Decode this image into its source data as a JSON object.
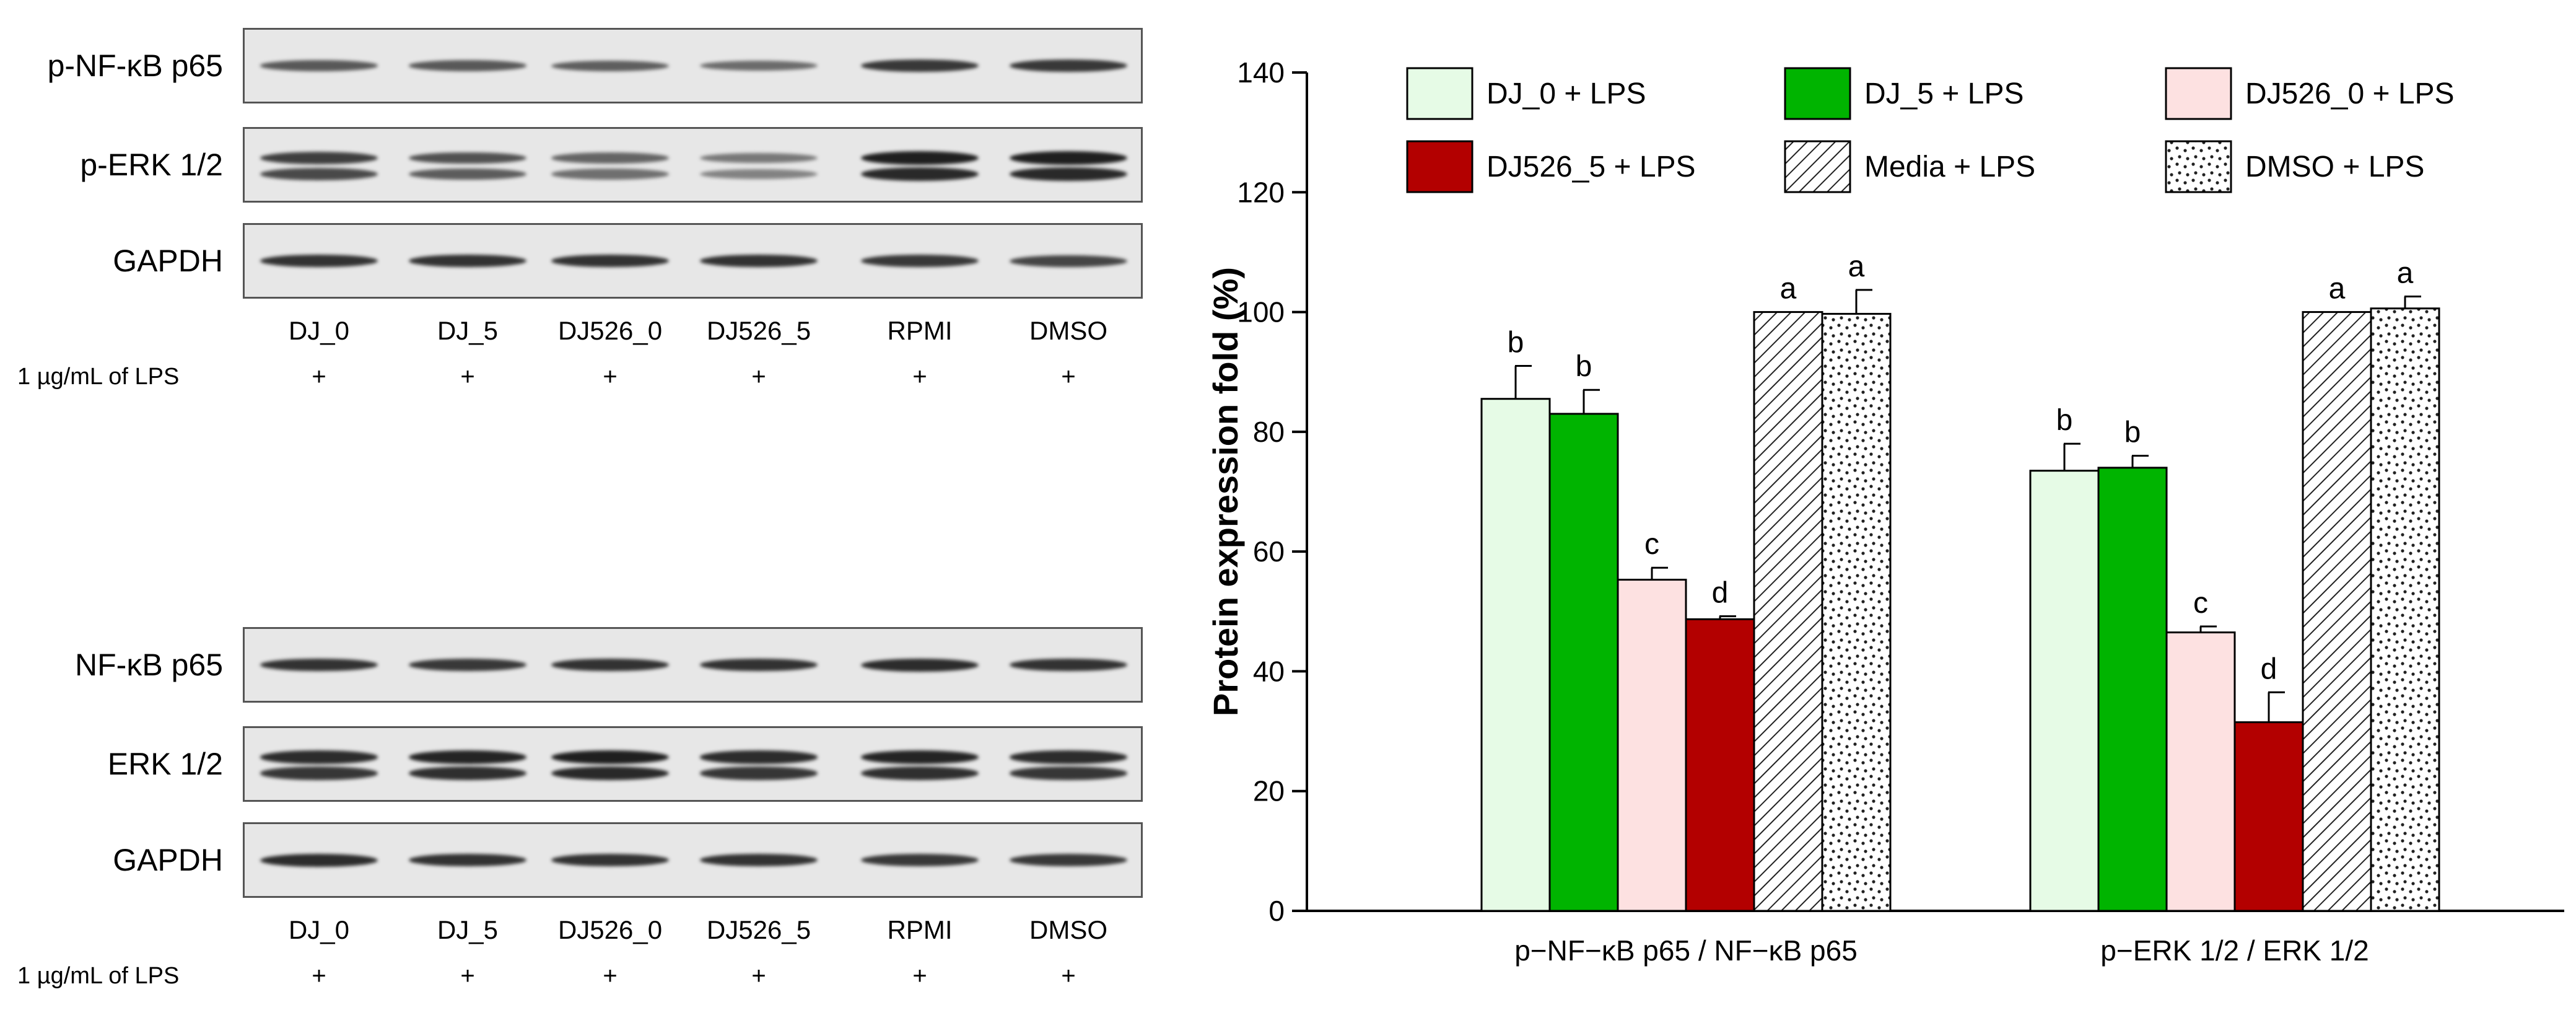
{
  "blots": {
    "lanes": [
      "DJ_0",
      "DJ_5",
      "DJ526_0",
      "DJ526_5",
      "RPMI",
      "DMSO"
    ],
    "lps_label": "1 µg/mL of LPS",
    "lps_marks": [
      "+",
      "+",
      "+",
      "+",
      "+",
      "+"
    ],
    "groups": [
      {
        "rows": [
          {
            "label": "p-NF-κB p65",
            "intensity": [
              0.55,
              0.55,
              0.5,
              0.4,
              0.8,
              0.8
            ],
            "double": false
          },
          {
            "label": "p-ERK 1/2",
            "intensity": [
              0.75,
              0.6,
              0.45,
              0.3,
              1.0,
              1.0
            ],
            "double": true
          },
          {
            "label": "GAPDH",
            "intensity": [
              0.85,
              0.85,
              0.85,
              0.85,
              0.8,
              0.7
            ],
            "double": false
          }
        ]
      },
      {
        "rows": [
          {
            "label": "NF-κB p65",
            "intensity": [
              0.85,
              0.8,
              0.85,
              0.85,
              0.9,
              0.85
            ],
            "double": false
          },
          {
            "label": "ERK 1/2",
            "intensity": [
              0.9,
              0.95,
              1.0,
              0.9,
              0.95,
              0.9
            ],
            "double": true
          },
          {
            "label": "GAPDH",
            "intensity": [
              0.9,
              0.85,
              0.85,
              0.85,
              0.8,
              0.8
            ],
            "double": false
          }
        ]
      }
    ]
  },
  "chart_data": {
    "type": "bar",
    "title": "",
    "xlabel": "",
    "ylabel": "Protein expression fold (%)",
    "ylim": [
      0,
      140
    ],
    "yticks": [
      0,
      20,
      40,
      60,
      80,
      100,
      120,
      140
    ],
    "grid": false,
    "legend_position": "top",
    "categories": [
      "p−NF−κB p65 / NF−κB p65",
      "p−ERK 1/2 / ERK 1/2"
    ],
    "series": [
      {
        "name": "DJ_0 + LPS",
        "values": [
          85.5,
          73.5
        ],
        "errors": [
          5.5,
          4.5
        ],
        "letters": [
          "b",
          "b"
        ],
        "color": "#e6fbe6",
        "pattern": "none"
      },
      {
        "name": "DJ_5 + LPS",
        "values": [
          83,
          74
        ],
        "errors": [
          4,
          2
        ],
        "letters": [
          "b",
          "b"
        ],
        "color": "#00b400",
        "pattern": "none"
      },
      {
        "name": "DJ526_0 + LPS",
        "values": [
          55.3,
          46.5
        ],
        "errors": [
          2,
          1
        ],
        "letters": [
          "c",
          "c"
        ],
        "color": "#fde1e1",
        "pattern": "none"
      },
      {
        "name": "DJ526_5 + LPS",
        "values": [
          48.7,
          31.5
        ],
        "errors": [
          0.5,
          5
        ],
        "letters": [
          "d",
          "d"
        ],
        "color": "#b30000",
        "pattern": "none"
      },
      {
        "name": "Media + LPS",
        "values": [
          100,
          100
        ],
        "errors": [
          0,
          0
        ],
        "letters": [
          "a",
          "a"
        ],
        "color": "#ffffff",
        "pattern": "hatch"
      },
      {
        "name": "DMSO + LPS",
        "values": [
          99.7,
          100.6
        ],
        "errors": [
          4,
          2
        ],
        "letters": [
          "a",
          "a"
        ],
        "color": "#ffffff",
        "pattern": "dots"
      }
    ]
  }
}
